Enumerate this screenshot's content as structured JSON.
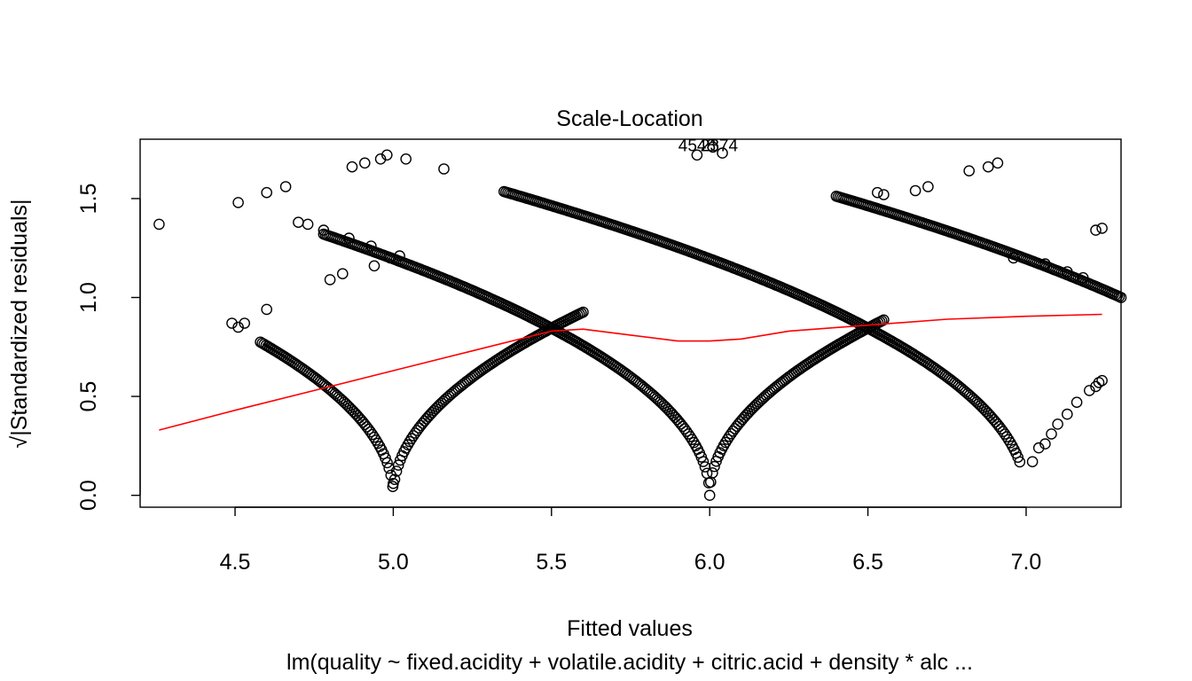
{
  "chart_data": {
    "type": "scatter",
    "title": "Scale-Location",
    "xlabel": "Fitted values",
    "ylabel": "√|Standardized residuals|",
    "ylabel_sqrt": "√",
    "ylabel_text": "|Standardized residuals|",
    "subtitle": "lm(quality ~ fixed.acidity + volatile.acidity + citric.acid + density * alc ...",
    "xlim": [
      4.2,
      7.3
    ],
    "ylim": [
      -0.06,
      1.8
    ],
    "xticks": [
      4.5,
      5.0,
      5.5,
      6.0,
      6.5,
      7.0
    ],
    "xtick_labels": [
      "4.5",
      "5.0",
      "5.5",
      "6.0",
      "6.5",
      "7.0"
    ],
    "yticks": [
      0.0,
      0.5,
      1.0,
      1.5
    ],
    "ytick_labels": [
      "0.0",
      "0.5",
      "1.0",
      "1.5"
    ],
    "outlier_labels": [
      {
        "text": "4548",
        "x": 5.96,
        "y": 1.74
      },
      {
        "text": "2374",
        "x": 6.03,
        "y": 1.74
      }
    ],
    "fitted_quality_levels": [
      5,
      6,
      7,
      8
    ],
    "residual_scale": 0.7,
    "curve_ranges": [
      {
        "level": 5,
        "from": 4.58,
        "to": 5.6
      },
      {
        "level": 6,
        "from": 4.78,
        "to": 6.55
      },
      {
        "level": 7,
        "from": 5.35,
        "to": 6.98
      },
      {
        "level": 8,
        "from": 6.4,
        "to": 7.3
      }
    ],
    "extra_points": [
      [
        4.26,
        1.37
      ],
      [
        4.49,
        0.87
      ],
      [
        4.51,
        0.85
      ],
      [
        4.53,
        0.87
      ],
      [
        4.6,
        0.94
      ],
      [
        4.51,
        1.48
      ],
      [
        4.6,
        1.53
      ],
      [
        4.66,
        1.56
      ],
      [
        4.87,
        1.66
      ],
      [
        4.91,
        1.68
      ],
      [
        4.96,
        1.7
      ],
      [
        4.98,
        1.72
      ],
      [
        5.04,
        1.7
      ],
      [
        5.16,
        1.65
      ],
      [
        4.7,
        1.38
      ],
      [
        4.73,
        1.37
      ],
      [
        4.78,
        1.34
      ],
      [
        4.86,
        1.3
      ],
      [
        4.93,
        1.26
      ],
      [
        4.94,
        1.16
      ],
      [
        4.99,
        1.2
      ],
      [
        5.02,
        1.21
      ],
      [
        4.84,
        1.12
      ],
      [
        4.8,
        1.09
      ],
      [
        6.82,
        1.64
      ],
      [
        6.88,
        1.66
      ],
      [
        6.91,
        1.68
      ],
      [
        6.65,
        1.54
      ],
      [
        6.69,
        1.56
      ],
      [
        7.06,
        1.17
      ],
      [
        7.13,
        1.13
      ],
      [
        7.18,
        1.1
      ],
      [
        7.22,
        1.34
      ],
      [
        7.24,
        1.35
      ],
      [
        6.96,
        1.2
      ],
      [
        6.53,
        1.53
      ],
      [
        6.55,
        1.52
      ],
      [
        7.02,
        0.17
      ],
      [
        7.04,
        0.24
      ],
      [
        7.06,
        0.26
      ],
      [
        7.08,
        0.31
      ],
      [
        7.1,
        0.36
      ],
      [
        7.13,
        0.41
      ],
      [
        7.16,
        0.47
      ],
      [
        7.2,
        0.53
      ],
      [
        7.22,
        0.55
      ],
      [
        7.23,
        0.57
      ],
      [
        7.24,
        0.58
      ],
      [
        5.0,
        0.06
      ],
      [
        6.0,
        0.0
      ],
      [
        5.96,
        1.72
      ],
      [
        6.01,
        1.76
      ],
      [
        6.04,
        1.73
      ]
    ],
    "lowess": {
      "color": "#ff0000",
      "x": [
        4.26,
        4.5,
        4.75,
        5.0,
        5.25,
        5.5,
        5.6,
        5.75,
        5.9,
        6.0,
        6.1,
        6.25,
        6.5,
        6.75,
        7.0,
        7.24
      ],
      "y": [
        0.33,
        0.43,
        0.53,
        0.63,
        0.73,
        0.83,
        0.84,
        0.81,
        0.78,
        0.78,
        0.79,
        0.83,
        0.86,
        0.89,
        0.905,
        0.915
      ]
    }
  }
}
